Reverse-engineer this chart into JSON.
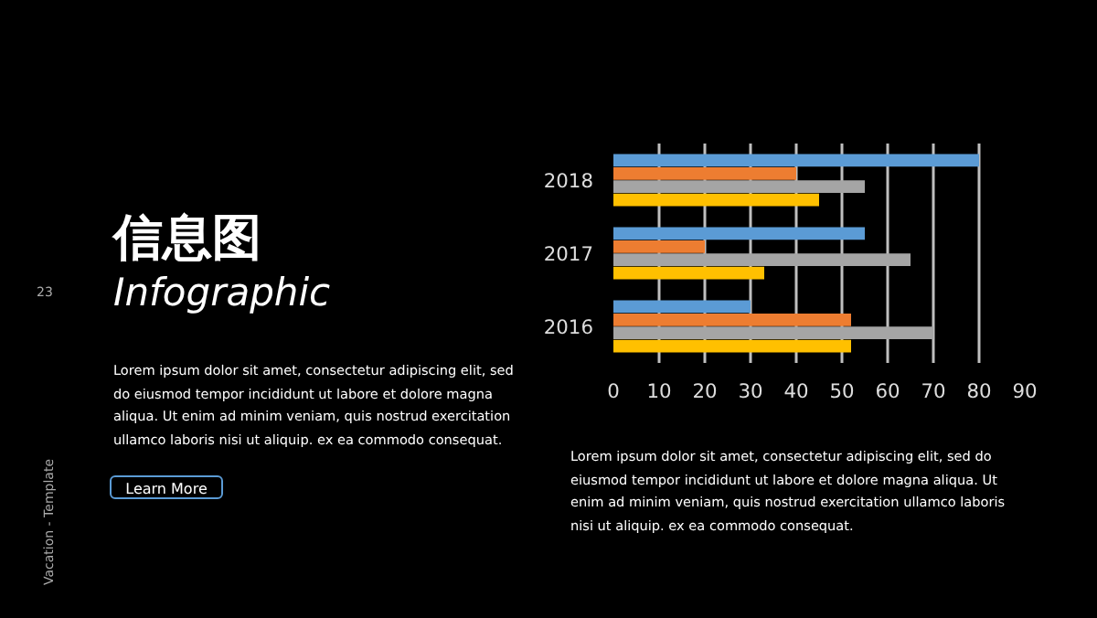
{
  "chart_data": {
    "type": "bar",
    "orientation": "horizontal",
    "title": "信息图",
    "subtitle": "Infographic",
    "categories": [
      "2018",
      "2017",
      "2016"
    ],
    "series": [
      {
        "color": "#5b9bd5",
        "values": [
          80,
          55,
          30
        ]
      },
      {
        "color": "#ed7d31",
        "values": [
          40,
          20,
          52
        ]
      },
      {
        "color": "#a5a5a5",
        "values": [
          55,
          65,
          70
        ]
      },
      {
        "color": "#ffc000",
        "values": [
          45,
          33,
          52
        ]
      }
    ],
    "xlim": [
      0,
      90
    ],
    "xticks": [
      0,
      10,
      20,
      30,
      40,
      50,
      60,
      70,
      80,
      90
    ],
    "grid": "x",
    "annotations": [
      "23",
      "Vacation - Template",
      "Lorem ipsum dolor sit amet, consectetur adipiscing elit, sed do eiusmod tempor incididunt ut labore et dolore magna aliqua. Ut enim ad minim veniam, quis nostrud exercitation ullamco laboris nisi ut aliquip. ex ea commodo consequat.",
      "Learn More",
      "Lorem ipsum dolor sit amet, consectetur adipiscing elit, sed do eiusmod tempor incididunt ut labore et dolore magna aliqua. Ut enim ad minim veniam, quis nostrud exercitation ullamco laboris nisi ut aliquip. ex ea commodo consequat."
    ]
  }
}
